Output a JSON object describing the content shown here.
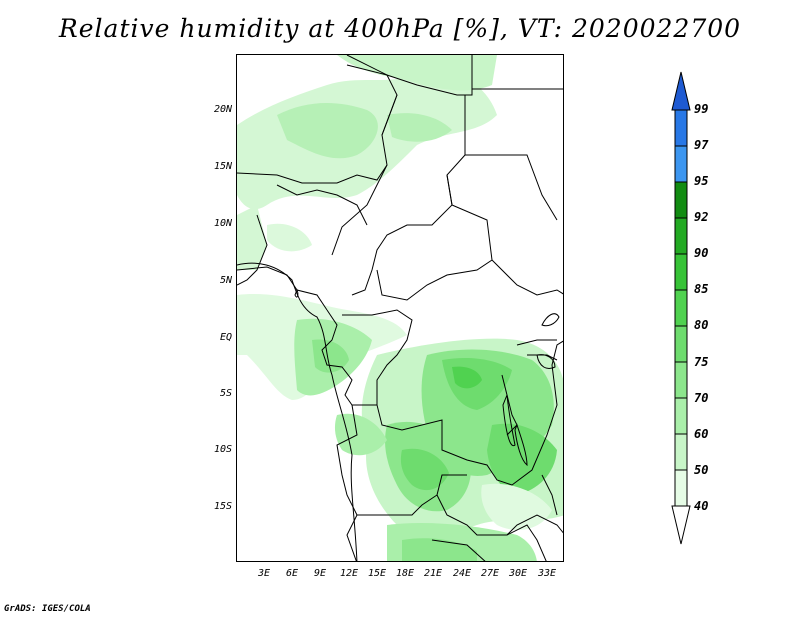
{
  "title": "Relative humidity at 400hPa [%], VT: 2020022700",
  "credit": "GrADS: IGES/COLA",
  "map": {
    "lat_ticks": [
      "20N",
      "15N",
      "10N",
      "5N",
      "EQ",
      "5S",
      "10S",
      "15S"
    ],
    "lon_ticks": [
      "3E",
      "6E",
      "9E",
      "12E",
      "15E",
      "18E",
      "21E",
      "24E",
      "27E",
      "30E",
      "33E"
    ]
  },
  "colorbar": {
    "levels": [
      "40",
      "50",
      "60",
      "70",
      "75",
      "80",
      "85",
      "90",
      "92",
      "95",
      "97",
      "99"
    ],
    "colors": {
      "40-50": "#e6fce6",
      "50-60": "#c8f5c8",
      "60-70": "#aaefaa",
      "70-75": "#8ce68c",
      "75-80": "#6edc6e",
      "80-85": "#50d250",
      "85-90": "#37c337",
      "90-92": "#23aa23",
      "92-95": "#128c12",
      "95-97": "#3c96f0",
      "97-99": "#2878e6",
      "99+": "#1e5ad2"
    }
  }
}
